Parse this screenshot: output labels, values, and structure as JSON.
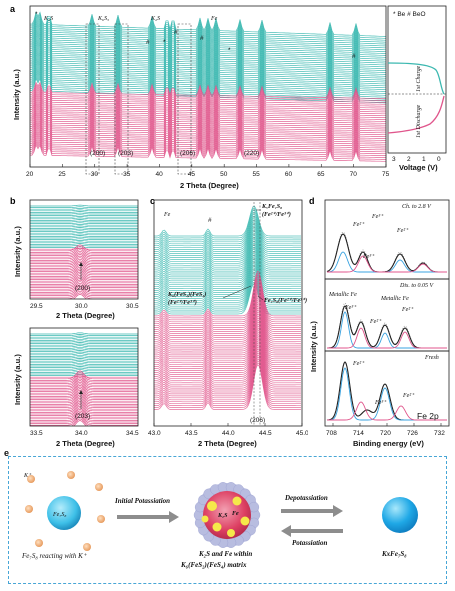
{
  "panels": {
    "a": {
      "label": "a",
      "xlabel": "2 Theta (Degree)",
      "ylabel": "Intensity (a.u.)",
      "xticks": [
        "20",
        "25",
        "30",
        "35",
        "40",
        "45",
        "50",
        "55",
        "60",
        "65",
        "70",
        "75"
      ],
      "legend": "* Be   # BeO",
      "phase_labels": [
        "K₂S",
        "K₆S₅",
        "K₂S",
        "Fe"
      ],
      "hkl": [
        "(200)",
        "(203)",
        "(206)",
        "(220)"
      ],
      "side_xlabel": "Voltage (V)",
      "side_xticks": [
        "3",
        "2",
        "1",
        "0"
      ],
      "charge_label": "1st Charge",
      "discharge_label": "1st Discharge"
    },
    "b": {
      "label": "b",
      "top": {
        "ylabel": "Intensity (a.u.)",
        "xlabel": "2 Theta (Degree)",
        "xticks": [
          "29.5",
          "30.0",
          "30.5"
        ],
        "hkl": "(200)"
      },
      "bottom": {
        "ylabel": "Intensity (a.u.)",
        "xlabel": "2 Theta (Degree)",
        "xticks": [
          "33.5",
          "34.0",
          "34.5"
        ],
        "hkl": "(203)"
      }
    },
    "c": {
      "label": "c",
      "xlabel": "2 Theta (Degree)",
      "xticks": [
        "43.0",
        "43.5",
        "44.0",
        "44.5",
        "45.0"
      ],
      "fe_label": "Fe",
      "hash": "#",
      "ann1a": "KₓFe₇S₈",
      "ann1b": "(Fe²⁺/Fe³⁺)",
      "ann2a": "K₆(FeS₂)(FeS₄)",
      "ann2b": "(Fe²⁺/Fe³⁺)",
      "ann3": "Fe₇S₈(Fe²⁺/Fe³⁺)",
      "hkl": "(206)"
    },
    "d": {
      "label": "d",
      "ylabel": "Intensity (a.u.)",
      "xlabel": "Binding energy (eV)",
      "xticks": [
        "708",
        "714",
        "720",
        "726",
        "732"
      ],
      "top_title": "Ch. to 2.8 V",
      "mid_title": "Dis. to 0.05 V",
      "bottom_title": "Fresh",
      "metallic1": "Metallic Fe",
      "metallic2": "Metallic Fe",
      "fe3": "Fe³⁺",
      "fe2": "Fe²⁺",
      "region": "Fe 2p"
    },
    "e": {
      "label": "e",
      "left_particle": "Fe₇S₈",
      "k_ion": "K⁺",
      "left_caption": "Fe₇S₈ reacting with K⁺",
      "arrow1": "Initial Potassiation",
      "mid_k2s": "K₂S",
      "mid_fe": "Fe",
      "mid_caption1": "K₂S and Fe within",
      "mid_caption2": "K₆(FeS₂)(FeS₄) matrix",
      "arrow_dep": "Depotassiation",
      "arrow_pot": "Potassiation",
      "right_caption": "KxFe₇S₈"
    }
  },
  "colors": {
    "teal": "#3bb8b0",
    "pink": "#e0568c",
    "black": "#222222",
    "blue": "#3aa3e0",
    "grey": "#9a9a9a"
  }
}
